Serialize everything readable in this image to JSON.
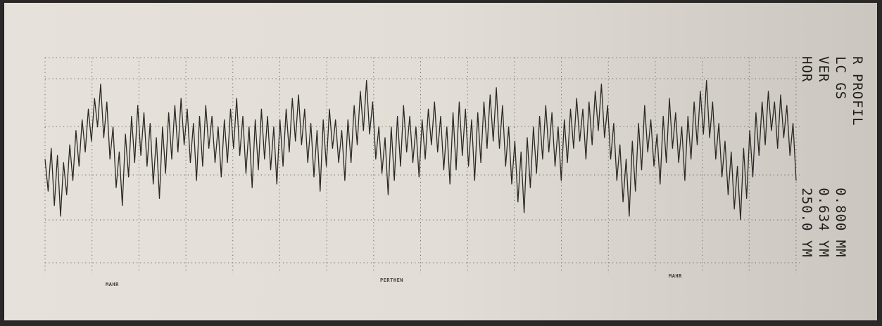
{
  "chart_data": {
    "type": "line",
    "title": "",
    "xlabel": "",
    "ylabel": "",
    "grid": true,
    "series": [
      {
        "values": [
          0.1,
          -0.35,
          0.25,
          -0.55,
          0.15,
          -0.7,
          0.05,
          -0.4,
          0.3,
          -0.2,
          0.5,
          0.0,
          0.65,
          0.2,
          0.8,
          0.35,
          0.95,
          0.55,
          1.15,
          0.4,
          0.9,
          0.1,
          0.55,
          -0.3,
          0.2,
          -0.55,
          0.45,
          -0.15,
          0.7,
          0.05,
          0.85,
          0.15,
          0.75,
          0.0,
          0.6,
          -0.25,
          0.4,
          -0.45,
          0.55,
          -0.1,
          0.75,
          0.1,
          0.85,
          0.2,
          0.95,
          0.3,
          0.8,
          0.05,
          0.6,
          -0.2,
          0.7,
          0.0,
          0.85,
          0.25,
          0.7,
          0.05,
          0.55,
          -0.15,
          0.65,
          0.05,
          0.8,
          0.25,
          0.95,
          0.15,
          0.7,
          -0.1,
          0.55,
          -0.3,
          0.65,
          -0.05,
          0.8,
          0.1,
          0.7,
          -0.05,
          0.55,
          -0.25,
          0.65,
          0.0,
          0.8,
          0.2,
          0.95,
          0.35,
          1.0,
          0.3,
          0.8,
          0.05,
          0.6,
          -0.15,
          0.5,
          -0.35,
          0.65,
          0.0,
          0.8,
          0.25,
          0.65,
          0.05,
          0.5,
          -0.2,
          0.65,
          0.05,
          0.85,
          0.3,
          1.05,
          0.5,
          1.2,
          0.45,
          0.9,
          0.1,
          0.55,
          -0.1,
          0.4,
          -0.4,
          0.55,
          -0.2,
          0.7,
          0.0,
          0.85,
          0.2,
          0.7,
          0.05,
          0.55,
          -0.15,
          0.65,
          0.1,
          0.8,
          0.3,
          0.9,
          0.2,
          0.7,
          -0.05,
          0.55,
          -0.25,
          0.75,
          -0.05,
          0.9,
          0.15,
          0.8,
          0.0,
          0.65,
          -0.2,
          0.75,
          0.05,
          0.9,
          0.25,
          1.0,
          0.35,
          1.1,
          0.25,
          0.85,
          0.0,
          0.55,
          -0.25,
          0.35,
          -0.5,
          0.2,
          -0.65,
          0.4,
          -0.3,
          0.55,
          -0.1,
          0.7,
          0.1,
          0.85,
          0.2,
          0.75,
          0.0,
          0.55,
          -0.2,
          0.65,
          0.05,
          0.8,
          0.25,
          0.95,
          0.35,
          0.8,
          0.1,
          0.9,
          0.3,
          1.05,
          0.5,
          1.15,
          0.4,
          0.85,
          0.1,
          0.6,
          -0.2,
          0.3,
          -0.5,
          0.1,
          -0.7,
          0.35,
          -0.35,
          0.6,
          -0.05,
          0.85,
          0.2,
          0.65,
          0.0,
          0.45,
          -0.25,
          0.7,
          0.05,
          0.95,
          0.25,
          0.75,
          0.05,
          0.55,
          -0.2,
          0.7,
          0.1,
          0.9,
          0.3,
          1.05,
          0.45,
          1.2,
          0.4,
          0.9,
          0.1,
          0.6,
          -0.15,
          0.35,
          -0.4,
          0.2,
          -0.6,
          0.0,
          -0.75,
          0.25,
          -0.45,
          0.5,
          -0.15,
          0.75,
          0.15,
          0.9,
          0.3,
          1.05,
          0.5,
          0.9,
          0.25,
          1.0,
          0.4,
          0.85,
          0.15,
          0.6,
          -0.2
        ],
        "color": "#2a2926"
      }
    ],
    "ylim": [
      -1.5,
      1.6
    ]
  },
  "side_text": {
    "line1": "R PROFIL",
    "line2": "LC  GS",
    "line3": "VER",
    "line4": "HOR",
    "value2": "0.800 MM",
    "value3": "0.634 YM",
    "value4": "250.0 YM"
  },
  "brand_labels": {
    "left": "MAHR",
    "center": "PERTHEN",
    "right": "MAHR"
  }
}
